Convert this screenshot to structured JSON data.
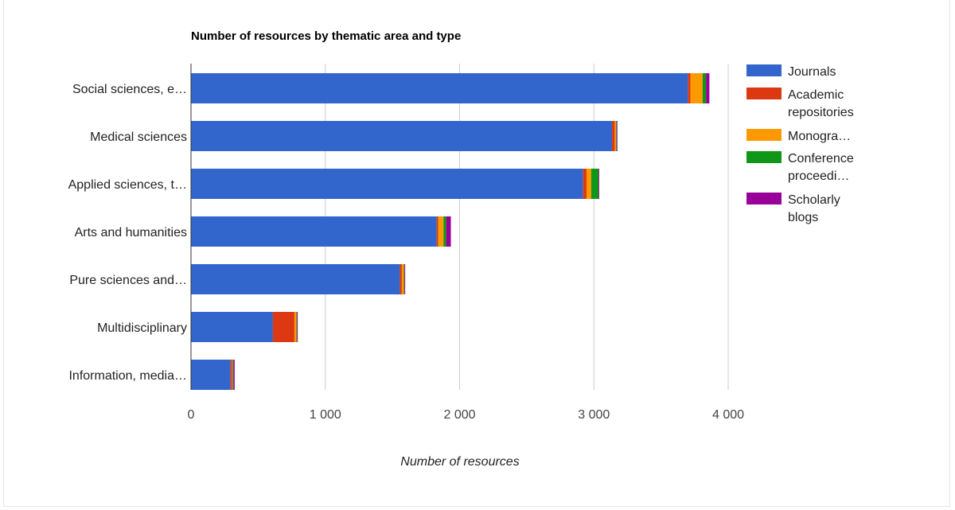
{
  "chart_data": {
    "type": "bar",
    "orientation": "horizontal",
    "stacked": true,
    "title": "Number of resources by thematic area and type",
    "xlabel": "Number of resources",
    "ylabel": "",
    "xlim": [
      0,
      4000
    ],
    "x_ticks": [
      0,
      1000,
      2000,
      3000,
      4000
    ],
    "x_tick_labels": [
      "0",
      "1 000",
      "2 000",
      "3 000",
      "4 000"
    ],
    "grid": true,
    "legend_position": "right",
    "categories": [
      "Social sciences, e…",
      "Medical sciences",
      "Applied sciences, t…",
      "Arts and humanities",
      "Pure sciences and…",
      "Multidisciplinary",
      "Information, media…"
    ],
    "series": [
      {
        "name": "Journals",
        "color": "#3366cc",
        "values": [
          3700,
          3135,
          2920,
          1830,
          1555,
          610,
          295
        ]
      },
      {
        "name": "Academic repositories",
        "color": "#dc3912",
        "values": [
          20,
          20,
          25,
          10,
          15,
          160,
          10
        ]
      },
      {
        "name": "Monographs",
        "color": "#ff9900",
        "values": [
          90,
          10,
          35,
          40,
          15,
          15,
          5
        ]
      },
      {
        "name": "Conference proceedings",
        "color": "#109618",
        "values": [
          25,
          5,
          55,
          20,
          5,
          5,
          5
        ]
      },
      {
        "name": "Scholarly blogs",
        "color": "#990099",
        "values": [
          25,
          5,
          5,
          35,
          5,
          5,
          10
        ]
      }
    ],
    "legend": [
      {
        "lines": [
          "Journals"
        ],
        "color": "#3366cc"
      },
      {
        "lines": [
          "Academic",
          "repositories"
        ],
        "color": "#dc3912"
      },
      {
        "lines": [
          "Monogra…"
        ],
        "color": "#ff9900"
      },
      {
        "lines": [
          "Conference",
          "proceedi…"
        ],
        "color": "#109618"
      },
      {
        "lines": [
          "Scholarly",
          "blogs"
        ],
        "color": "#990099"
      }
    ]
  }
}
